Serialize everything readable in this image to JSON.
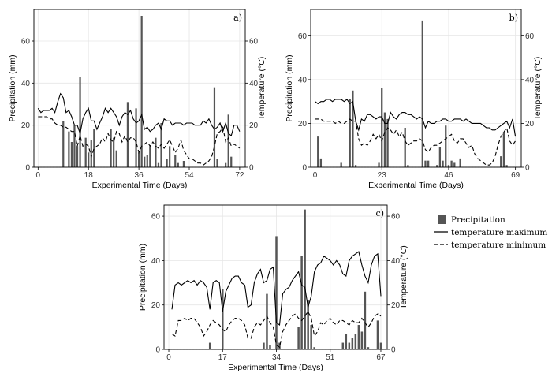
{
  "legend": {
    "precipitation": "Precipitation",
    "tmax": "temperature maximum",
    "tmin": "temperature minimum"
  },
  "colors": {
    "bar": "#555555",
    "line": "#000000",
    "frame": "#000000",
    "grid": "#e6e6e6",
    "zero_line": "#888888"
  },
  "chart_data": [
    {
      "panel": "a)",
      "type": "bar+line",
      "xlabel": "Experimental Time (Days)",
      "ylabel_left": "Precipitation (mm)",
      "ylabel_right": "Temperature (°C)",
      "xticks": [
        0,
        18,
        36,
        54,
        72
      ],
      "ylim_left": [
        0,
        75
      ],
      "ylim_right": [
        0,
        75
      ],
      "xlim": [
        -1.5,
        74
      ],
      "yticks_left": [
        0,
        20,
        40,
        60
      ],
      "yticks_right": [
        0,
        20,
        40,
        60
      ],
      "grid": true,
      "precipitation": {
        "x": [
          9,
          11,
          12,
          13,
          14,
          15,
          17,
          18,
          19,
          20,
          26,
          27,
          28,
          32,
          35,
          36,
          37,
          38,
          39,
          40,
          42,
          43,
          44,
          46,
          47,
          49,
          50,
          52,
          63,
          64,
          67,
          68,
          69
        ],
        "y": [
          22,
          17,
          12,
          20,
          10,
          43,
          14,
          7,
          13,
          18,
          18,
          14,
          8,
          31,
          28,
          7,
          72,
          5,
          6,
          10,
          14,
          2,
          21,
          4,
          10,
          6,
          2,
          3,
          38,
          4,
          2,
          25,
          5
        ]
      },
      "temp_max": {
        "x": [
          0,
          1,
          2,
          3,
          4,
          5,
          6,
          7,
          8,
          9,
          10,
          11,
          12,
          13,
          14,
          15,
          16,
          17,
          18,
          19,
          20,
          21,
          22,
          23,
          24,
          25,
          26,
          27,
          28,
          29,
          30,
          31,
          32,
          33,
          34,
          35,
          36,
          37,
          38,
          39,
          40,
          41,
          42,
          43,
          44,
          45,
          46,
          47,
          48,
          49,
          50,
          51,
          52,
          53,
          54,
          55,
          56,
          57,
          58,
          59,
          60,
          61,
          62,
          63,
          64,
          65,
          66,
          67,
          68,
          69,
          70,
          71,
          72
        ],
        "y": [
          28,
          26,
          27,
          27,
          27,
          28,
          26,
          31,
          35,
          33,
          26,
          27,
          24,
          20,
          20,
          16,
          23,
          26,
          28,
          22,
          22,
          18,
          21,
          24,
          28,
          26,
          28,
          26,
          24,
          20,
          24,
          26,
          25,
          27,
          23,
          21,
          22,
          25,
          18,
          19,
          17,
          18,
          20,
          21,
          18,
          23,
          22,
          22,
          20,
          21,
          21,
          21,
          20,
          21,
          21,
          21,
          20,
          20,
          20,
          22,
          21,
          23,
          20,
          18,
          19,
          21,
          17,
          21,
          16,
          15,
          20,
          20,
          17
        ]
      },
      "temp_min": {
        "x": [
          0,
          1,
          2,
          3,
          4,
          5,
          6,
          7,
          8,
          9,
          10,
          11,
          12,
          13,
          14,
          15,
          16,
          17,
          18,
          19,
          20,
          21,
          22,
          23,
          24,
          25,
          26,
          27,
          28,
          29,
          30,
          31,
          32,
          33,
          34,
          35,
          36,
          37,
          38,
          39,
          40,
          41,
          42,
          43,
          44,
          45,
          46,
          47,
          48,
          49,
          50,
          51,
          52,
          53,
          54,
          55,
          56,
          57,
          58,
          59,
          60,
          61,
          62,
          63,
          64,
          65,
          66,
          67,
          68,
          69,
          70,
          71,
          72
        ],
        "y": [
          24,
          24,
          24,
          24,
          23,
          23,
          21,
          20,
          20,
          19,
          19,
          18,
          17,
          17,
          10,
          15,
          10,
          11,
          10,
          5,
          9,
          10,
          11,
          14,
          12,
          16,
          13,
          12,
          17,
          16,
          12,
          15,
          12,
          14,
          14,
          12,
          7,
          10,
          11,
          12,
          10,
          12,
          10,
          9,
          11,
          9,
          11,
          13,
          10,
          7,
          9,
          13,
          8,
          6,
          4,
          4,
          3,
          2,
          2,
          1,
          2,
          3,
          5,
          10,
          16,
          17,
          19,
          12,
          14,
          10,
          11,
          10,
          9
        ]
      }
    },
    {
      "panel": "b)",
      "type": "bar+line",
      "xlabel": "Experimental Time (Days)",
      "ylabel_left": "Precipitation (mm)",
      "ylabel_right": "Temperature (°C)",
      "xticks": [
        0,
        23,
        46,
        69
      ],
      "ylim_left": [
        0,
        72
      ],
      "ylim_right": [
        0,
        72
      ],
      "xlim": [
        -1.5,
        71
      ],
      "yticks_left": [
        0,
        20,
        40,
        60
      ],
      "yticks_right": [
        0,
        20,
        40,
        60
      ],
      "grid": true,
      "precipitation": {
        "x": [
          1,
          2,
          9,
          12,
          13,
          14,
          22,
          23,
          24,
          25,
          31,
          32,
          37,
          38,
          39,
          42,
          43,
          44,
          45,
          46,
          47,
          48,
          50,
          64,
          65,
          66
        ],
        "y": [
          14,
          4,
          2,
          31,
          35,
          1,
          2,
          36,
          25,
          22,
          18,
          1,
          67,
          3,
          3,
          1,
          9,
          3,
          19,
          1,
          3,
          2,
          4,
          5,
          16,
          1
        ],
        "_": 0
      },
      "temp_max": {
        "x": [
          0,
          1,
          2,
          3,
          4,
          5,
          6,
          7,
          8,
          9,
          10,
          11,
          12,
          13,
          14,
          15,
          16,
          17,
          18,
          19,
          20,
          21,
          22,
          23,
          24,
          25,
          26,
          27,
          28,
          29,
          30,
          31,
          32,
          33,
          34,
          35,
          36,
          37,
          38,
          39,
          40,
          41,
          42,
          43,
          44,
          45,
          46,
          47,
          48,
          49,
          50,
          51,
          52,
          53,
          54,
          55,
          56,
          57,
          58,
          59,
          60,
          61,
          62,
          63,
          64,
          65,
          66,
          67,
          68,
          69
        ],
        "y": [
          30,
          29,
          30,
          30,
          31,
          31,
          30,
          31,
          31,
          31,
          30,
          31,
          29,
          30,
          21,
          17,
          22,
          21,
          24,
          24,
          23,
          22,
          23,
          23,
          20,
          20,
          25,
          23,
          22,
          24,
          25,
          25,
          24,
          24,
          23,
          22,
          23,
          22,
          18,
          21,
          20,
          20,
          21,
          21,
          22,
          22,
          21,
          21,
          22,
          22,
          22,
          21,
          22,
          21,
          20,
          20,
          20,
          20,
          19,
          18,
          18,
          17,
          17,
          18,
          19,
          20,
          21,
          18,
          22,
          14
        ]
      },
      "temp_min": {
        "x": [
          0,
          1,
          2,
          3,
          4,
          5,
          6,
          7,
          8,
          9,
          10,
          11,
          12,
          13,
          14,
          15,
          16,
          17,
          18,
          19,
          20,
          21,
          22,
          23,
          24,
          25,
          26,
          27,
          28,
          29,
          30,
          31,
          32,
          33,
          34,
          35,
          36,
          37,
          38,
          39,
          40,
          41,
          42,
          43,
          44,
          45,
          46,
          47,
          48,
          49,
          50,
          51,
          52,
          53,
          54,
          55,
          56,
          57,
          58,
          59,
          60,
          61,
          62,
          63,
          64,
          65,
          66,
          67,
          68,
          69
        ],
        "y": [
          22,
          22,
          22,
          21,
          21,
          21,
          21,
          20,
          21,
          20,
          20,
          21,
          22,
          21,
          21,
          13,
          10,
          11,
          10,
          12,
          15,
          13,
          15,
          12,
          16,
          18,
          17,
          15,
          17,
          14,
          16,
          12,
          10,
          11,
          12,
          12,
          13,
          12,
          8,
          7,
          9,
          10,
          10,
          11,
          12,
          13,
          14,
          15,
          12,
          11,
          13,
          13,
          11,
          9,
          10,
          6,
          4,
          3,
          2,
          1,
          1,
          2,
          5,
          10,
          14,
          16,
          18,
          12,
          10,
          12
        ]
      }
    },
    {
      "panel": "c)",
      "type": "bar+line",
      "xlabel": "Experimental Time (Days)",
      "ylabel_left": "Precipitation (mm)",
      "ylabel_right": "Temperature (°C)",
      "xticks": [
        0,
        17,
        34,
        51,
        67
      ],
      "ylim_left": [
        0,
        65
      ],
      "ylim_right": [
        0,
        65
      ],
      "xlim": [
        -1.5,
        69
      ],
      "yticks_left": [
        0,
        20,
        40,
        60
      ],
      "yticks_right": [
        0,
        20,
        40,
        60
      ],
      "grid": true,
      "precipitation": {
        "x": [
          13,
          17,
          30,
          31,
          32,
          34,
          35,
          41,
          42,
          43,
          44,
          45,
          46,
          55,
          56,
          57,
          58,
          59,
          60,
          61,
          62,
          63,
          66,
          67
        ],
        "y": [
          3,
          27,
          3,
          25,
          2,
          51,
          3,
          10,
          42,
          63,
          22,
          11,
          1,
          3,
          7,
          3,
          5,
          7,
          11,
          8,
          26,
          1,
          13,
          3
        ]
      },
      "temp_max": {
        "x": [
          1,
          2,
          3,
          4,
          5,
          6,
          7,
          8,
          9,
          10,
          11,
          12,
          13,
          14,
          15,
          16,
          17,
          18,
          19,
          20,
          21,
          22,
          23,
          24,
          25,
          26,
          27,
          28,
          29,
          30,
          31,
          32,
          33,
          34,
          35,
          36,
          37,
          38,
          39,
          40,
          41,
          42,
          43,
          44,
          45,
          46,
          47,
          48,
          49,
          50,
          51,
          52,
          53,
          54,
          55,
          56,
          57,
          58,
          59,
          60,
          61,
          62,
          63,
          64,
          65,
          66,
          67
        ],
        "y": [
          18,
          29,
          30,
          29,
          30,
          31,
          30,
          31,
          29,
          31,
          30,
          28,
          18,
          30,
          31,
          30,
          17,
          26,
          29,
          32,
          33,
          33,
          30,
          29,
          19,
          20,
          30,
          34,
          36,
          30,
          31,
          36,
          37,
          12,
          11,
          25,
          27,
          28,
          31,
          33,
          35,
          29,
          28,
          19,
          24,
          35,
          38,
          39,
          42,
          41,
          40,
          38,
          40,
          38,
          34,
          33,
          40,
          42,
          43,
          44,
          38,
          33,
          30,
          38,
          42,
          43,
          24
        ]
      },
      "temp_min": {
        "x": [
          1,
          2,
          3,
          4,
          5,
          6,
          7,
          8,
          9,
          10,
          11,
          12,
          13,
          14,
          15,
          16,
          17,
          18,
          19,
          20,
          21,
          22,
          23,
          24,
          25,
          26,
          27,
          28,
          29,
          30,
          31,
          32,
          33,
          34,
          35,
          36,
          37,
          38,
          39,
          40,
          41,
          42,
          43,
          44,
          45,
          46,
          47,
          48,
          49,
          50,
          51,
          52,
          53,
          54,
          55,
          56,
          57,
          58,
          59,
          60,
          61,
          62,
          63,
          64,
          65,
          66,
          67
        ],
        "y": [
          7,
          6,
          13,
          13,
          14,
          13,
          14,
          14,
          12,
          10,
          6,
          8,
          11,
          13,
          12,
          11,
          9,
          8,
          11,
          13,
          14,
          14,
          13,
          11,
          5,
          5,
          10,
          12,
          11,
          13,
          15,
          12,
          10,
          2,
          1,
          8,
          11,
          13,
          15,
          16,
          14,
          13,
          15,
          17,
          14,
          6,
          8,
          12,
          11,
          13,
          14,
          12,
          11,
          13,
          13,
          12,
          11,
          13,
          12,
          12,
          14,
          12,
          10,
          12,
          15,
          16,
          15
        ]
      }
    }
  ]
}
